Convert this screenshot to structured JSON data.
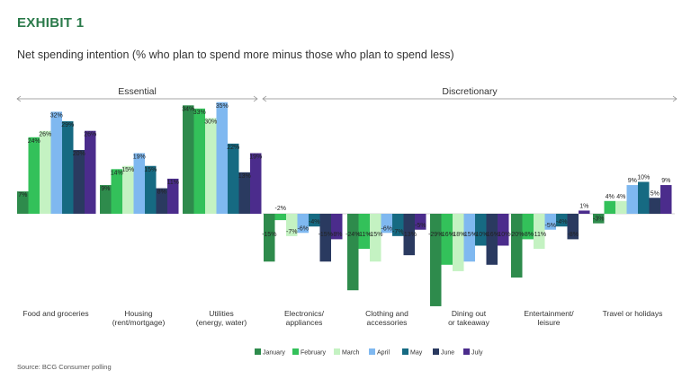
{
  "header": {
    "exhibit": "EXHIBIT 1",
    "subtitle": "Net spending intention (% who plan to spend more minus those who plan to spend less)"
  },
  "source": "Source: BCG Consumer polling",
  "chart_data": {
    "type": "bar",
    "title": "Net spending intention (% who plan to spend more minus those who plan to spend less)",
    "groups": [
      {
        "label": "Essential",
        "category_range": [
          0,
          2
        ]
      },
      {
        "label": "Discretionary",
        "category_range": [
          3,
          8
        ]
      }
    ],
    "categories": [
      [
        "Food and groceries"
      ],
      [
        "Housing",
        "(rent/mortgage)"
      ],
      [
        "Utilities",
        "(energy, water)"
      ],
      [
        "Electronics/",
        "appliances"
      ],
      [
        "Clothing and",
        "accessories"
      ],
      [
        "Dining out",
        "or takeaway"
      ],
      [
        "Entertainment/",
        "leisure"
      ],
      [
        "Travel or holidays"
      ]
    ],
    "series": [
      {
        "name": "January",
        "color": "#2e8b4c",
        "values": [
          7,
          9,
          34,
          -15,
          -24,
          -29,
          -20,
          -3
        ]
      },
      {
        "name": "February",
        "color": "#33c15a",
        "values": [
          24,
          14,
          33,
          -2,
          -11,
          -16,
          -8,
          4
        ]
      },
      {
        "name": "March",
        "color": "#c4f2c2",
        "values": [
          26,
          15,
          30,
          -7,
          -15,
          -18,
          -11,
          4
        ]
      },
      {
        "name": "April",
        "color": "#7fb8f0",
        "values": [
          32,
          19,
          35,
          -6,
          -6,
          -15,
          -5,
          9
        ]
      },
      {
        "name": "May",
        "color": "#166a82",
        "values": [
          29,
          15,
          22,
          -4,
          -7,
          -10,
          -4,
          10
        ]
      },
      {
        "name": "June",
        "color": "#2a3a60",
        "values": [
          20,
          8,
          13,
          -15,
          -13,
          -16,
          -8,
          5
        ]
      },
      {
        "name": "July",
        "color": "#4b2c8c",
        "values": [
          26,
          11,
          19,
          -8,
          -5,
          -10,
          1,
          9
        ]
      }
    ],
    "labeled_values": [
      [
        [
          0,
          7
        ],
        [
          1,
          24
        ],
        [
          2,
          26
        ],
        [
          3,
          32
        ],
        [
          4,
          29
        ],
        [
          5,
          20
        ],
        [
          6,
          26
        ]
      ],
      [
        [
          0,
          9
        ],
        [
          1,
          14
        ],
        [
          2,
          15
        ],
        [
          3,
          19
        ],
        [
          4,
          15
        ],
        [
          5,
          8
        ],
        [
          6,
          11
        ]
      ],
      [
        [
          0,
          34
        ],
        [
          1,
          33
        ],
        [
          2,
          30
        ],
        [
          3,
          35
        ],
        [
          4,
          22
        ],
        [
          5,
          13
        ],
        [
          6,
          19
        ]
      ],
      [
        [
          0,
          -15
        ],
        [
          1,
          -2
        ],
        [
          2,
          -7
        ],
        [
          3,
          -6
        ],
        [
          4,
          -4
        ],
        [
          5,
          -15
        ],
        [
          6,
          -8
        ]
      ],
      [
        [
          0,
          -24
        ],
        [
          1,
          -11
        ],
        [
          2,
          -15
        ],
        [
          3,
          -6
        ],
        [
          4,
          -7
        ],
        [
          5,
          -13
        ],
        [
          6,
          -5
        ]
      ],
      [
        [
          0,
          -29
        ],
        [
          1,
          -16
        ],
        [
          2,
          -18
        ],
        [
          3,
          -15
        ],
        [
          4,
          -10
        ],
        [
          5,
          -16
        ],
        [
          6,
          -10
        ]
      ],
      [
        [
          0,
          -20
        ],
        [
          1,
          -8
        ],
        [
          2,
          -11
        ],
        [
          3,
          -5
        ],
        [
          4,
          -4
        ],
        [
          5,
          -8
        ],
        [
          6,
          1
        ]
      ],
      [
        [
          0,
          -3
        ],
        [
          1,
          4
        ],
        [
          2,
          4
        ],
        [
          3,
          9
        ],
        [
          4,
          10
        ],
        [
          5,
          5
        ],
        [
          6,
          9
        ]
      ]
    ],
    "ylim": [
      -30,
      36
    ],
    "legend_position": "bottom-center",
    "xlabel": "",
    "ylabel": ""
  }
}
